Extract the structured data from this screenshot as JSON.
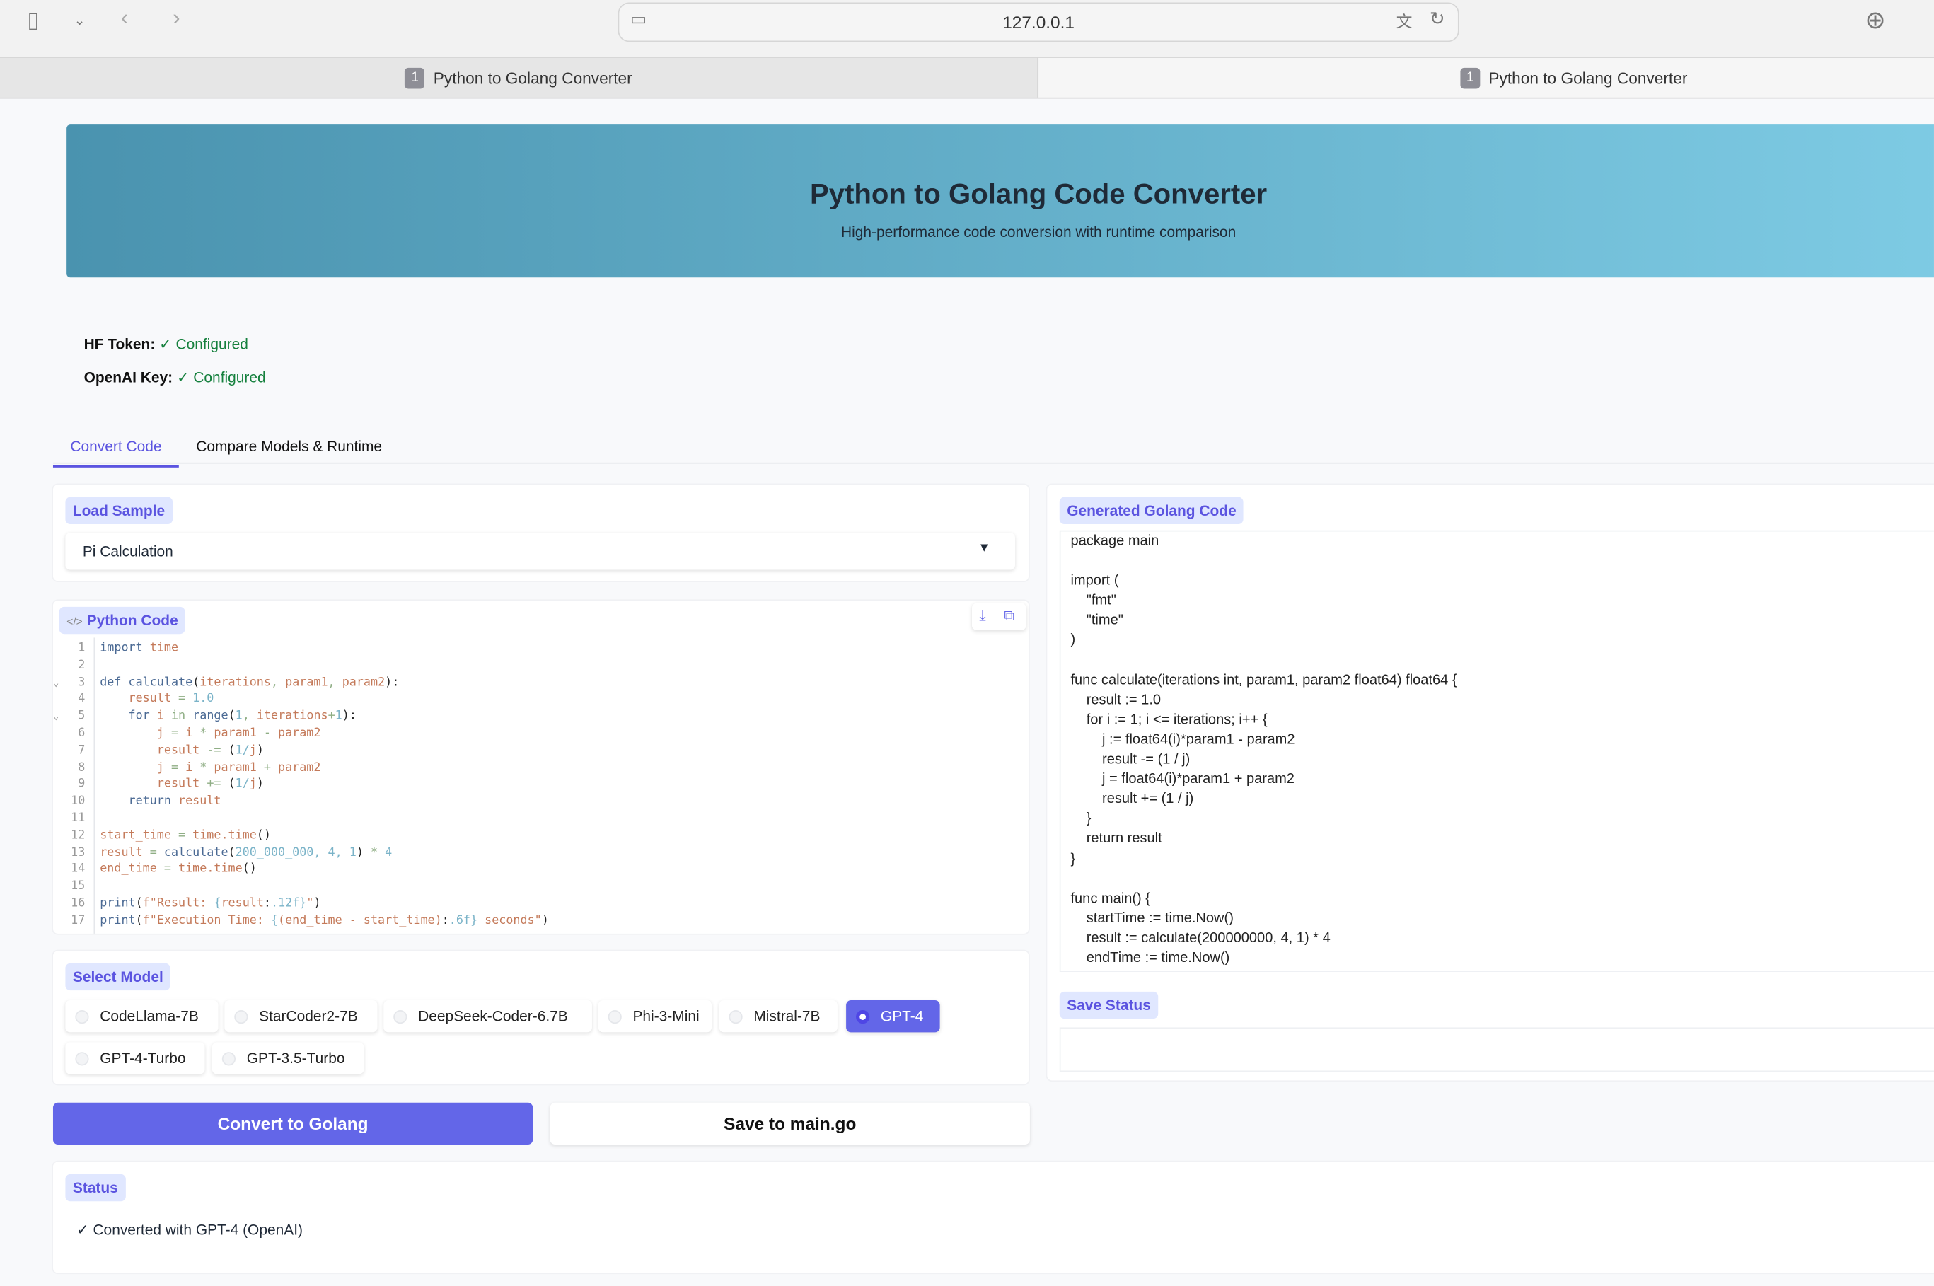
{
  "browser": {
    "url": "127.0.0.1",
    "tabs": [
      {
        "num": "1",
        "title": "Python to Golang Converter"
      },
      {
        "num": "1",
        "title": "Python to Golang Converter"
      }
    ]
  },
  "header": {
    "title": "Python to Golang Code Converter",
    "subtitle": "High-performance code conversion with runtime comparison"
  },
  "keys": {
    "hf_label": "HF Token:",
    "hf_value": "✓ Configured",
    "openai_label": "OpenAI Key:",
    "openai_value": "✓ Configured"
  },
  "nav": {
    "tabs": [
      "Convert Code",
      "Compare Models & Runtime"
    ],
    "active": 0
  },
  "sample": {
    "label": "Load Sample",
    "value": "Pi Calculation"
  },
  "python": {
    "label": "Python Code",
    "lines": [
      [
        [
          "import",
          "k"
        ],
        [
          " time",
          "v"
        ]
      ],
      [],
      [
        [
          "def ",
          "k"
        ],
        [
          "calculate",
          "k"
        ],
        [
          "(",
          "p"
        ],
        [
          "iterations",
          "v"
        ],
        [
          ", ",
          "o"
        ],
        [
          "param1",
          "v"
        ],
        [
          ", ",
          "o"
        ],
        [
          "param2",
          "v"
        ],
        [
          "):",
          "p"
        ]
      ],
      [
        [
          "    result",
          "v"
        ],
        [
          " = ",
          "o"
        ],
        [
          "1.0",
          "n"
        ]
      ],
      [
        [
          "    for ",
          "k"
        ],
        [
          "i ",
          "v"
        ],
        [
          "in ",
          "o"
        ],
        [
          "range",
          "k"
        ],
        [
          "(",
          "p"
        ],
        [
          "1",
          "n"
        ],
        [
          ", ",
          "o"
        ],
        [
          "iterations",
          "v"
        ],
        [
          "+",
          "o"
        ],
        [
          "1",
          "n"
        ],
        [
          "):",
          "p"
        ]
      ],
      [
        [
          "        j",
          "v"
        ],
        [
          " = ",
          "o"
        ],
        [
          "i",
          "v"
        ],
        [
          " * ",
          "o"
        ],
        [
          "param1",
          "v"
        ],
        [
          " - ",
          "o"
        ],
        [
          "param2",
          "v"
        ]
      ],
      [
        [
          "        result",
          "v"
        ],
        [
          " -= ",
          "o"
        ],
        [
          "(",
          "p"
        ],
        [
          "1/",
          "n"
        ],
        [
          "j",
          "v"
        ],
        [
          ")",
          "p"
        ]
      ],
      [
        [
          "        j",
          "v"
        ],
        [
          " = ",
          "o"
        ],
        [
          "i",
          "v"
        ],
        [
          " * ",
          "o"
        ],
        [
          "param1",
          "v"
        ],
        [
          " + ",
          "o"
        ],
        [
          "param2",
          "v"
        ]
      ],
      [
        [
          "        result",
          "v"
        ],
        [
          " += ",
          "o"
        ],
        [
          "(",
          "p"
        ],
        [
          "1/",
          "n"
        ],
        [
          "j",
          "v"
        ],
        [
          ")",
          "p"
        ]
      ],
      [
        [
          "    return ",
          "k"
        ],
        [
          "result",
          "v"
        ]
      ],
      [],
      [
        [
          "start_time",
          "v"
        ],
        [
          " = ",
          "o"
        ],
        [
          "time.time",
          "v"
        ],
        [
          "()",
          "p"
        ]
      ],
      [
        [
          "result",
          "v"
        ],
        [
          " = ",
          "o"
        ],
        [
          "calculate",
          "k"
        ],
        [
          "(",
          "p"
        ],
        [
          "200_000_000, 4, 1",
          "n"
        ],
        [
          ")",
          "p"
        ],
        [
          " * ",
          "o"
        ],
        [
          "4",
          "n"
        ]
      ],
      [
        [
          "end_time",
          "v"
        ],
        [
          " = ",
          "o"
        ],
        [
          "time.time",
          "v"
        ],
        [
          "()",
          "p"
        ]
      ],
      [],
      [
        [
          "print",
          "k"
        ],
        [
          "(",
          "p"
        ],
        [
          "f\"Result: ",
          "s"
        ],
        [
          "{",
          "n"
        ],
        [
          "result",
          "v"
        ],
        [
          ":",
          "p"
        ],
        [
          ".12f}",
          "n"
        ],
        [
          "\"",
          "s"
        ],
        [
          ")",
          "p"
        ]
      ],
      [
        [
          "print",
          "k"
        ],
        [
          "(",
          "p"
        ],
        [
          "f\"Execution Time: ",
          "s"
        ],
        [
          "{",
          "n"
        ],
        [
          "(end_time - start_time)",
          "v"
        ],
        [
          ":",
          "p"
        ],
        [
          ".6f}",
          "n"
        ],
        [
          " seconds\"",
          "s"
        ],
        [
          ")",
          "p"
        ]
      ]
    ]
  },
  "models": {
    "label": "Select Model",
    "options": [
      "CodeLlama-7B",
      "StarCoder2-7B",
      "DeepSeek-Coder-6.7B",
      "Phi-3-Mini",
      "Mistral-7B",
      "GPT-4",
      "GPT-4-Turbo",
      "GPT-3.5-Turbo"
    ],
    "selected": "GPT-4"
  },
  "actions": {
    "convert": "Convert to Golang",
    "save": "Save to main.go"
  },
  "status": {
    "label": "Status",
    "text": "✓ Converted with GPT-4 (OpenAI)"
  },
  "golang": {
    "label": "Generated Golang Code",
    "code": "package main\n\nimport (\n    \"fmt\"\n    \"time\"\n)\n\nfunc calculate(iterations int, param1, param2 float64) float64 {\n    result := 1.0\n    for i := 1; i <= iterations; i++ {\n        j := float64(i)*param1 - param2\n        result -= (1 / j)\n        j = float64(i)*param1 + param2\n        result += (1 / j)\n    }\n    return result\n}\n\nfunc main() {\n    startTime := time.Now()\n    result := calculate(200000000, 4, 1) * 4\n    endTime := time.Now()"
  },
  "save_status": {
    "label": "Save Status",
    "text": ""
  },
  "colors": {
    "accent": "#6366e8",
    "label_bg": "#e0e7ff",
    "hero_start": "#4a93af",
    "hero_end": "#7ecbe4"
  }
}
